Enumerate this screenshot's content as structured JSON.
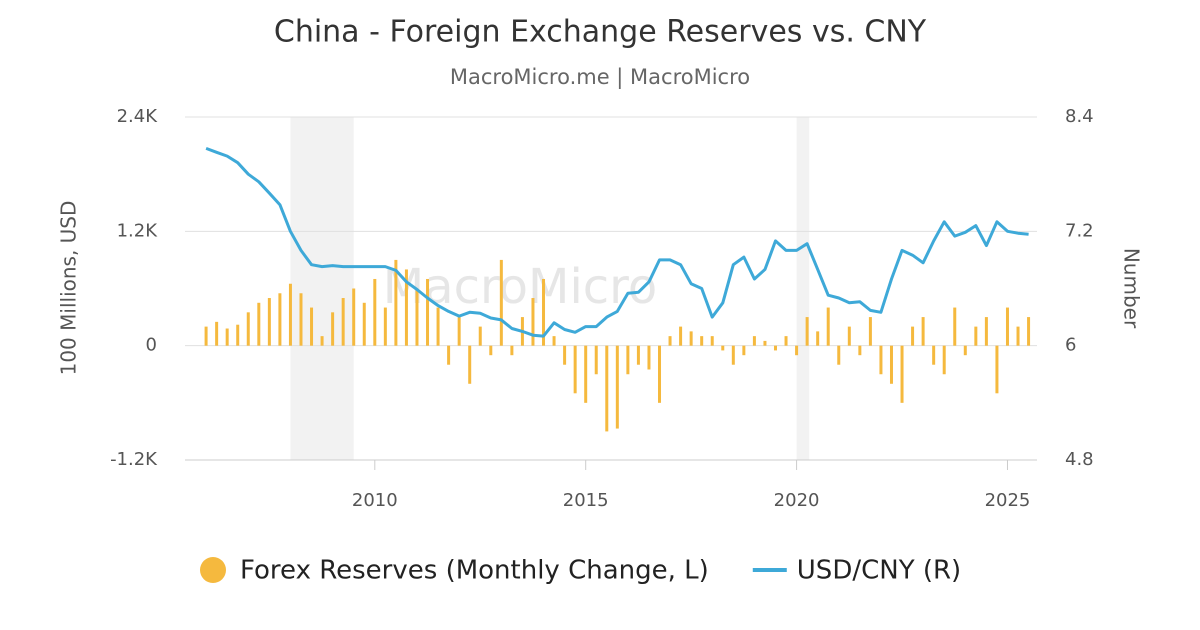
{
  "chart_data": {
    "type": "bar_line",
    "title": "China - Foreign Exchange Reserves vs. CNY",
    "subtitle": "MacroMicro.me | MacroMicro",
    "watermark": "MacroMicro",
    "y_label": "100 Millions, USD",
    "y2_label": "Number",
    "x": [
      2006,
      2006.25,
      2006.5,
      2006.75,
      2007,
      2007.25,
      2007.5,
      2007.75,
      2008,
      2008.25,
      2008.5,
      2008.75,
      2009,
      2009.25,
      2009.5,
      2009.75,
      2010,
      2010.25,
      2010.5,
      2010.75,
      2011,
      2011.25,
      2011.5,
      2011.75,
      2012,
      2012.25,
      2012.5,
      2012.75,
      2013,
      2013.25,
      2013.5,
      2013.75,
      2014,
      2014.25,
      2014.5,
      2014.75,
      2015,
      2015.25,
      2015.5,
      2015.75,
      2016,
      2016.25,
      2016.5,
      2016.75,
      2017,
      2017.25,
      2017.5,
      2017.75,
      2018,
      2018.25,
      2018.5,
      2018.75,
      2019,
      2019.25,
      2019.5,
      2019.75,
      2020,
      2020.25,
      2020.5,
      2020.75,
      2021,
      2021.25,
      2021.5,
      2021.75,
      2022,
      2022.25,
      2022.5,
      2022.75,
      2023,
      2023.25,
      2023.5,
      2023.75,
      2024,
      2024.25,
      2024.5,
      2024.75,
      2025,
      2025.25,
      2025.5
    ],
    "series": [
      {
        "name": "Forex Reserves (Monthly Change, L)",
        "type": "bar",
        "axis": "y",
        "color": "#f5b93e",
        "values": [
          200,
          250,
          180,
          220,
          350,
          450,
          500,
          550,
          650,
          550,
          400,
          100,
          350,
          500,
          600,
          450,
          700,
          400,
          900,
          800,
          600,
          700,
          400,
          -200,
          300,
          -400,
          200,
          -100,
          900,
          -100,
          300,
          500,
          700,
          100,
          -200,
          -500,
          -600,
          -300,
          -900,
          -870,
          -300,
          -200,
          -250,
          -600,
          100,
          200,
          150,
          100,
          100,
          -50,
          -200,
          -100,
          100,
          50,
          -50,
          100,
          -100,
          300,
          150,
          400,
          -200,
          200,
          -100,
          300,
          -300,
          -400,
          -600,
          200,
          300,
          -200,
          -300,
          400,
          -100,
          200,
          300,
          -500,
          400,
          200,
          300
        ]
      },
      {
        "name": "USD/CNY (R)",
        "type": "line",
        "axis": "y2",
        "color": "#3ea9d8",
        "values": [
          8.07,
          8.03,
          7.99,
          7.92,
          7.8,
          7.72,
          7.6,
          7.48,
          7.2,
          7.0,
          6.85,
          6.83,
          6.84,
          6.83,
          6.83,
          6.83,
          6.83,
          6.83,
          6.79,
          6.67,
          6.59,
          6.5,
          6.42,
          6.36,
          6.31,
          6.35,
          6.34,
          6.29,
          6.27,
          6.18,
          6.15,
          6.11,
          6.1,
          6.24,
          6.17,
          6.14,
          6.2,
          6.2,
          6.3,
          6.36,
          6.55,
          6.56,
          6.67,
          6.9,
          6.9,
          6.85,
          6.65,
          6.6,
          6.3,
          6.45,
          6.85,
          6.93,
          6.7,
          6.8,
          7.1,
          7.0,
          7.0,
          7.07,
          6.8,
          6.53,
          6.5,
          6.45,
          6.46,
          6.37,
          6.35,
          6.7,
          7.0,
          6.95,
          6.87,
          7.1,
          7.3,
          7.15,
          7.19,
          7.26,
          7.05,
          7.3,
          7.2,
          7.18,
          7.17
        ]
      }
    ],
    "shaded_periods": [
      [
        2008,
        2009.5
      ],
      [
        2020,
        2020.3
      ]
    ],
    "xlim": [
      2005.5,
      2025.7
    ],
    "xticks": [
      2010,
      2015,
      2020,
      2025
    ],
    "ylim": [
      -1200,
      2400
    ],
    "yticks": [
      {
        "value": -1200,
        "label": "-1.2K"
      },
      0,
      {
        "value": 1200,
        "label": "1.2K"
      },
      {
        "value": 2400,
        "label": "2.4K"
      }
    ],
    "y2lim": [
      4.8,
      8.4
    ],
    "y2ticks": [
      4.8,
      6,
      7.2,
      8.4
    ],
    "grid": true,
    "legend": "bottom"
  }
}
